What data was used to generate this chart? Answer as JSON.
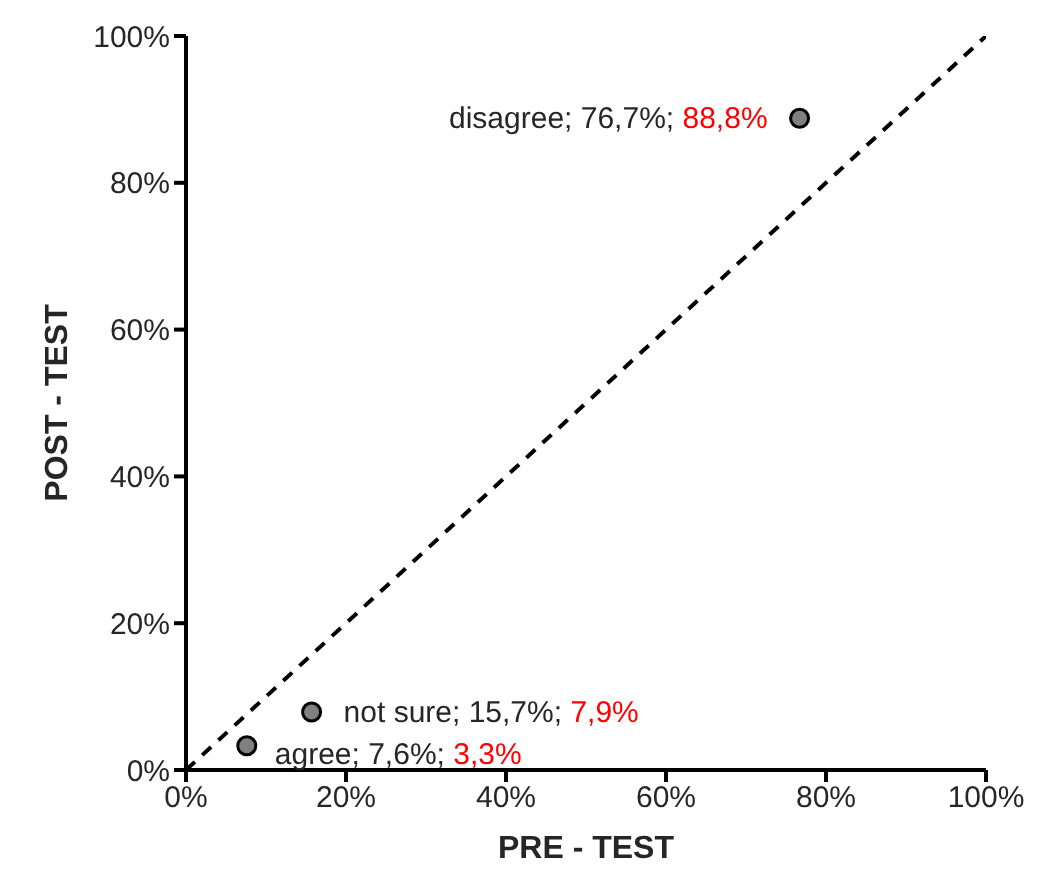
{
  "chart_data": {
    "type": "scatter",
    "xlabel": "PRE - TEST",
    "ylabel": "POST - TEST",
    "xlim": [
      0,
      100
    ],
    "ylim": [
      0,
      100
    ],
    "xticks": [
      {
        "value": 0,
        "label": "0%"
      },
      {
        "value": 20,
        "label": "20%"
      },
      {
        "value": 40,
        "label": "40%"
      },
      {
        "value": 60,
        "label": "60%"
      },
      {
        "value": 80,
        "label": "80%"
      },
      {
        "value": 100,
        "label": "100%"
      }
    ],
    "yticks": [
      {
        "value": 0,
        "label": "0%"
      },
      {
        "value": 20,
        "label": "20%"
      },
      {
        "value": 40,
        "label": "40%"
      },
      {
        "value": 60,
        "label": "60%"
      },
      {
        "value": 80,
        "label": "80%"
      },
      {
        "value": 100,
        "label": "100%"
      }
    ],
    "grid": false,
    "legend": false,
    "series": [
      {
        "color": "#808080",
        "marker": "circle",
        "x": [
          7.6,
          15.7,
          76.7
        ],
        "values": [
          3.3,
          7.9,
          88.8
        ]
      },
      {
        "type": "line",
        "color": "#000000",
        "marker": "none",
        "line_style": "dashed",
        "x": [
          0,
          100
        ],
        "values": [
          0,
          100
        ]
      }
    ],
    "annotations": [
      {
        "text": "agree; 7,6%; 3,3%",
        "x": 7.6,
        "y": 3.3
      },
      {
        "text": "not sure; 15,7%; 7,9%",
        "x": 15.7,
        "y": 7.9
      },
      {
        "text": "disagree; 76,7%; 88,8%",
        "x": 76.7,
        "y": 88.8
      }
    ]
  }
}
